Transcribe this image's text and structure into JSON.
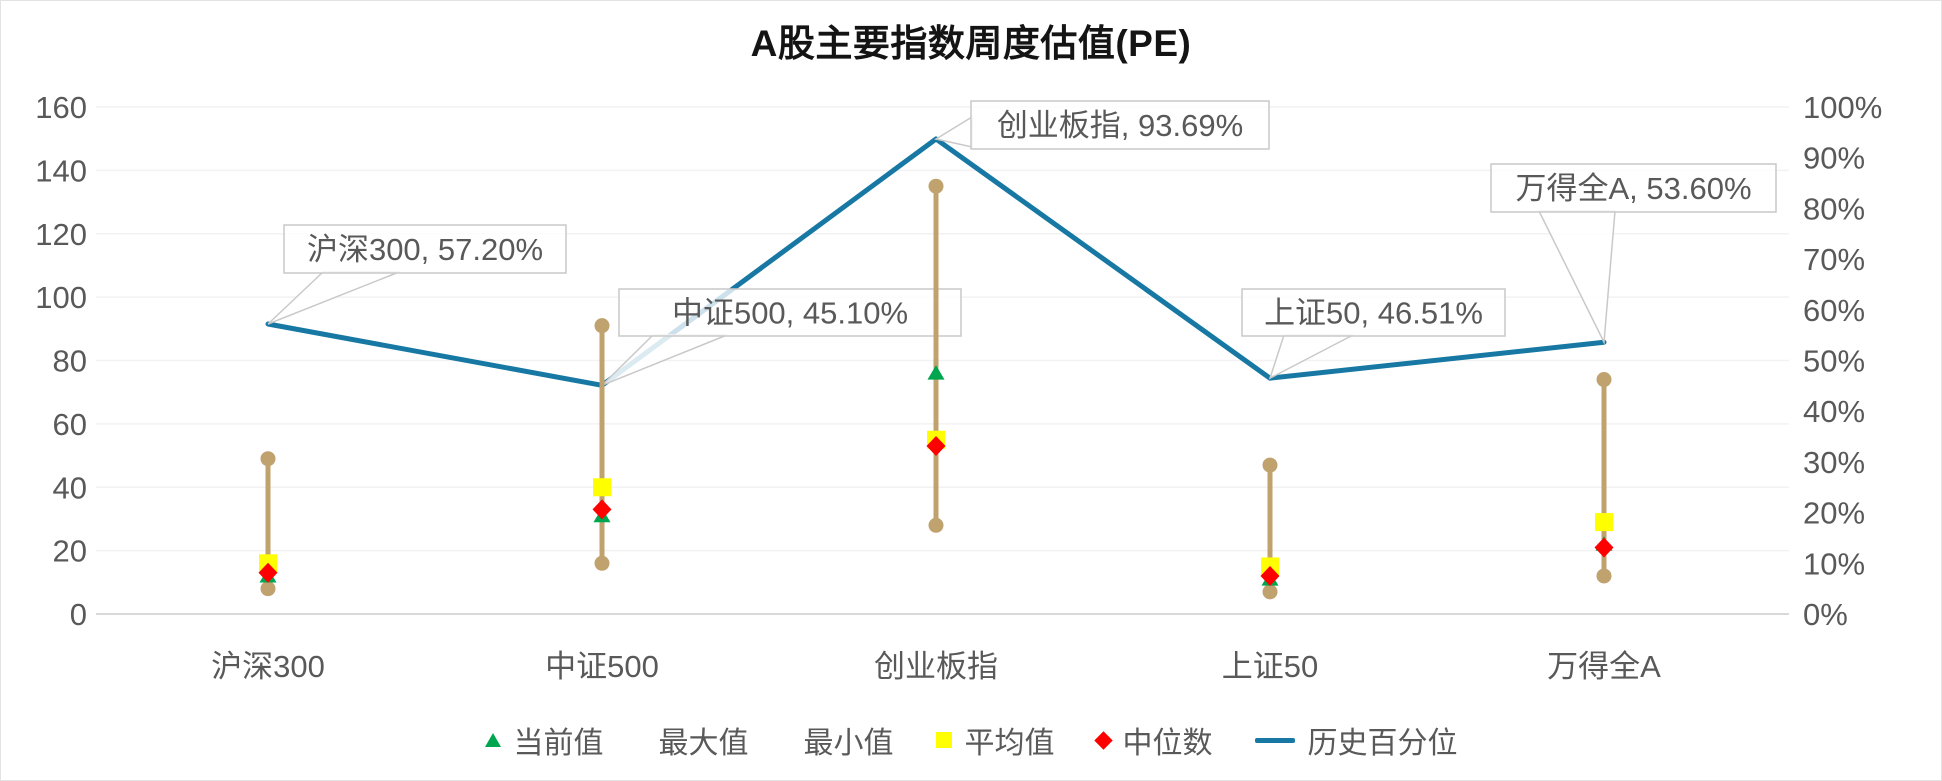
{
  "title": "A股主要指数周度估值(PE)",
  "colors": {
    "percentile_line": "#1778a4",
    "range_bar": "#bfa26e",
    "current_marker": "#00a550",
    "average_marker": "#ffff00",
    "median_marker": "#ff0000",
    "axis_text": "#595959",
    "gridline": "#f2f2f2",
    "axis_line": "#d9d9d9",
    "callout_border": "#c9c9c9"
  },
  "legend": {
    "items": [
      {
        "label": "当前值",
        "marker": "triangle"
      },
      {
        "label": "最大值",
        "marker": "none"
      },
      {
        "label": "最小值",
        "marker": "none"
      },
      {
        "label": "平均值",
        "marker": "square"
      },
      {
        "label": "中位数",
        "marker": "diamond"
      },
      {
        "label": "历史百分位",
        "marker": "line"
      }
    ]
  },
  "chart_data": {
    "type": "combo",
    "categories": [
      "沪深300",
      "中证500",
      "创业板指",
      "上证50",
      "万得全A"
    ],
    "series": [
      {
        "name": "当前值",
        "type": "scatter",
        "marker": "triangle",
        "color": "#00a550",
        "axis": "left",
        "values": [
          12,
          31,
          76,
          11,
          22
        ]
      },
      {
        "name": "最大值",
        "type": "range-high",
        "color": "#bfa26e",
        "axis": "left",
        "values": [
          49,
          91,
          135,
          47,
          74
        ]
      },
      {
        "name": "最小值",
        "type": "range-low",
        "color": "#bfa26e",
        "axis": "left",
        "values": [
          8,
          16,
          28,
          7,
          12
        ]
      },
      {
        "name": "平均值",
        "type": "scatter",
        "marker": "square",
        "color": "#ffff00",
        "axis": "left",
        "values": [
          16,
          40,
          55,
          15,
          29
        ]
      },
      {
        "name": "中位数",
        "type": "scatter",
        "marker": "diamond",
        "color": "#ff0000",
        "axis": "left",
        "values": [
          13,
          33,
          53,
          12,
          21
        ]
      },
      {
        "name": "历史百分位",
        "type": "line",
        "color": "#1778a4",
        "axis": "right",
        "values": [
          57.2,
          45.1,
          93.69,
          46.51,
          53.6
        ]
      }
    ],
    "left_axis": {
      "min": 0,
      "max": 160,
      "step": 20,
      "ticks": [
        "0",
        "20",
        "40",
        "60",
        "80",
        "100",
        "120",
        "140",
        "160"
      ]
    },
    "right_axis": {
      "min": 0,
      "max": 100,
      "step": 10,
      "ticks": [
        "0%",
        "10%",
        "20%",
        "30%",
        "40%",
        "50%",
        "60%",
        "70%",
        "80%",
        "90%",
        "100%"
      ]
    },
    "grid": true,
    "legend_position": "bottom",
    "annotations": [
      "沪深300, 57.20%",
      "中证500, 45.10%",
      "创业板指, 93.69%",
      "上证50, 46.51%",
      "万得全A, 53.60%"
    ]
  }
}
